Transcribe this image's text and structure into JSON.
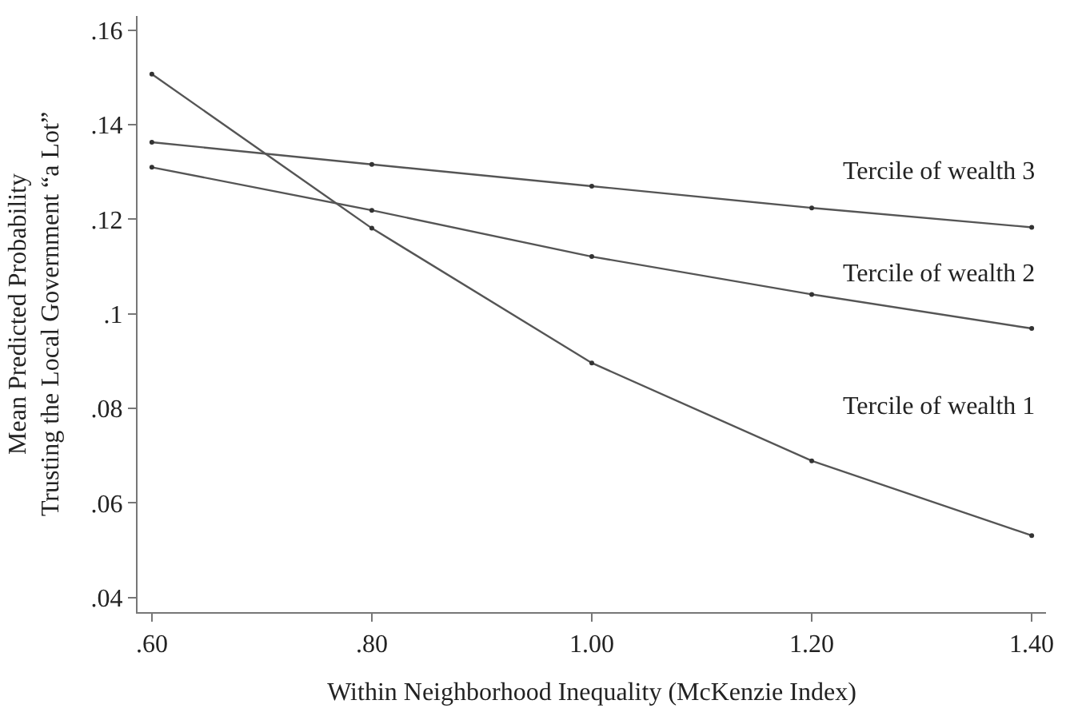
{
  "chart_data": {
    "type": "line",
    "xlabel": "Within Neighborhood Inequality (McKenzie Index)",
    "ylabel": "Mean Predicted Probability\nTrusting the Local Government “a Lot”",
    "x": [
      0.6,
      0.8,
      1.0,
      1.2,
      1.4
    ],
    "series": [
      {
        "name": "Tercile of wealth 1",
        "color": "#555555",
        "values": [
          0.1507,
          0.1181,
          0.0896,
          0.0689,
          0.0531
        ]
      },
      {
        "name": "Tercile of wealth 2",
        "color": "#555555",
        "values": [
          0.131,
          0.1219,
          0.1121,
          0.1041,
          0.0969
        ]
      },
      {
        "name": "Tercile of wealth 3",
        "color": "#555555",
        "values": [
          0.1363,
          0.1316,
          0.127,
          0.1224,
          0.1183
        ]
      }
    ],
    "xlim": [
      0.587,
      1.413
    ],
    "ylim": [
      0.0369,
      0.163
    ],
    "xticks": [
      {
        "value": 0.6,
        "label": ".60"
      },
      {
        "value": 0.8,
        "label": ".80"
      },
      {
        "value": 1.0,
        "label": "1.00"
      },
      {
        "value": 1.2,
        "label": "1.20"
      },
      {
        "value": 1.4,
        "label": "1.40"
      }
    ],
    "yticks": [
      {
        "value": 0.04,
        "label": ".04"
      },
      {
        "value": 0.06,
        "label": ".06"
      },
      {
        "value": 0.08,
        "label": ".08"
      },
      {
        "value": 0.1,
        "label": ".1"
      },
      {
        "value": 0.12,
        "label": ".12"
      },
      {
        "value": 0.14,
        "label": ".14"
      },
      {
        "value": 0.16,
        "label": ".16"
      }
    ],
    "legend": false,
    "marker": "circle",
    "line_style": "solid"
  }
}
